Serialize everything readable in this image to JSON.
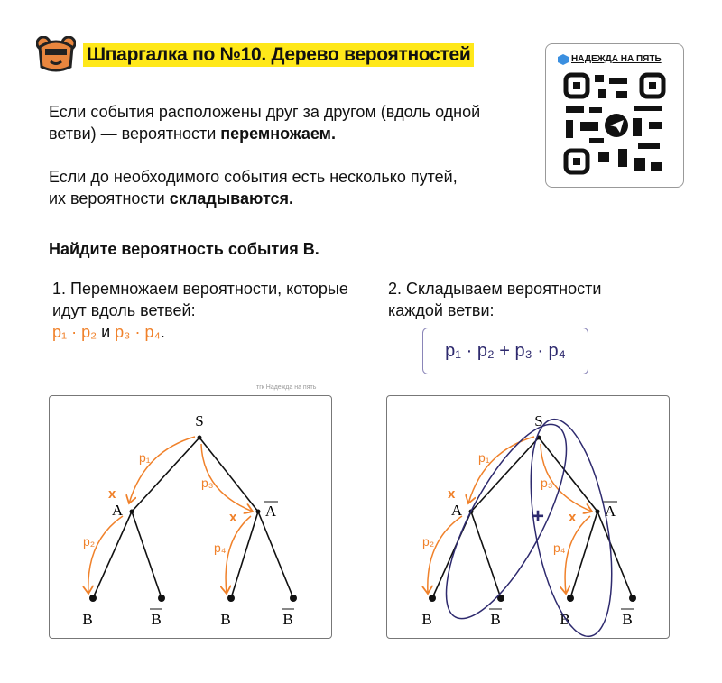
{
  "header": {
    "title": "Шпаргалка по №10. Дерево вероятностей",
    "logo": "bear-icon"
  },
  "qr": {
    "label": "НАДЕЖДА НА ПЯТЬ",
    "icon": "telegram-icon"
  },
  "rules": {
    "rule1_text": "Если события расположены друг за другом (вдоль одной ветви) — вероятности ",
    "rule1_bold": "перемножаем.",
    "rule2_text": "Если до необходимого события есть несколько путей, их вероятности ",
    "rule2_bold": "складываются."
  },
  "task": "Найдите вероятность события B.",
  "step1": {
    "text": "1. Перемножаем вероятности, которые идут вдоль ветвей:",
    "p12": "p₁ · p₂",
    "and": " и ",
    "p34": "p₃ · p₄",
    "dot": "."
  },
  "step2": {
    "text": "2. Складываем вероятности каждой ветви:",
    "formula": "p₁ · p₂ + p₃ · p₄"
  },
  "watermark": "тгк Надежда на пять",
  "tree": {
    "root": "S",
    "a": "A",
    "a_bar": "A",
    "b": "B",
    "b_bar": "B",
    "p1": "p₁",
    "p2": "p₂",
    "p3": "p₃",
    "p4": "p₄",
    "times": "x",
    "plus": "+"
  },
  "colors": {
    "accent": "#f0812a",
    "highlight": "#ffe81a",
    "navy": "#2e2a6e"
  }
}
